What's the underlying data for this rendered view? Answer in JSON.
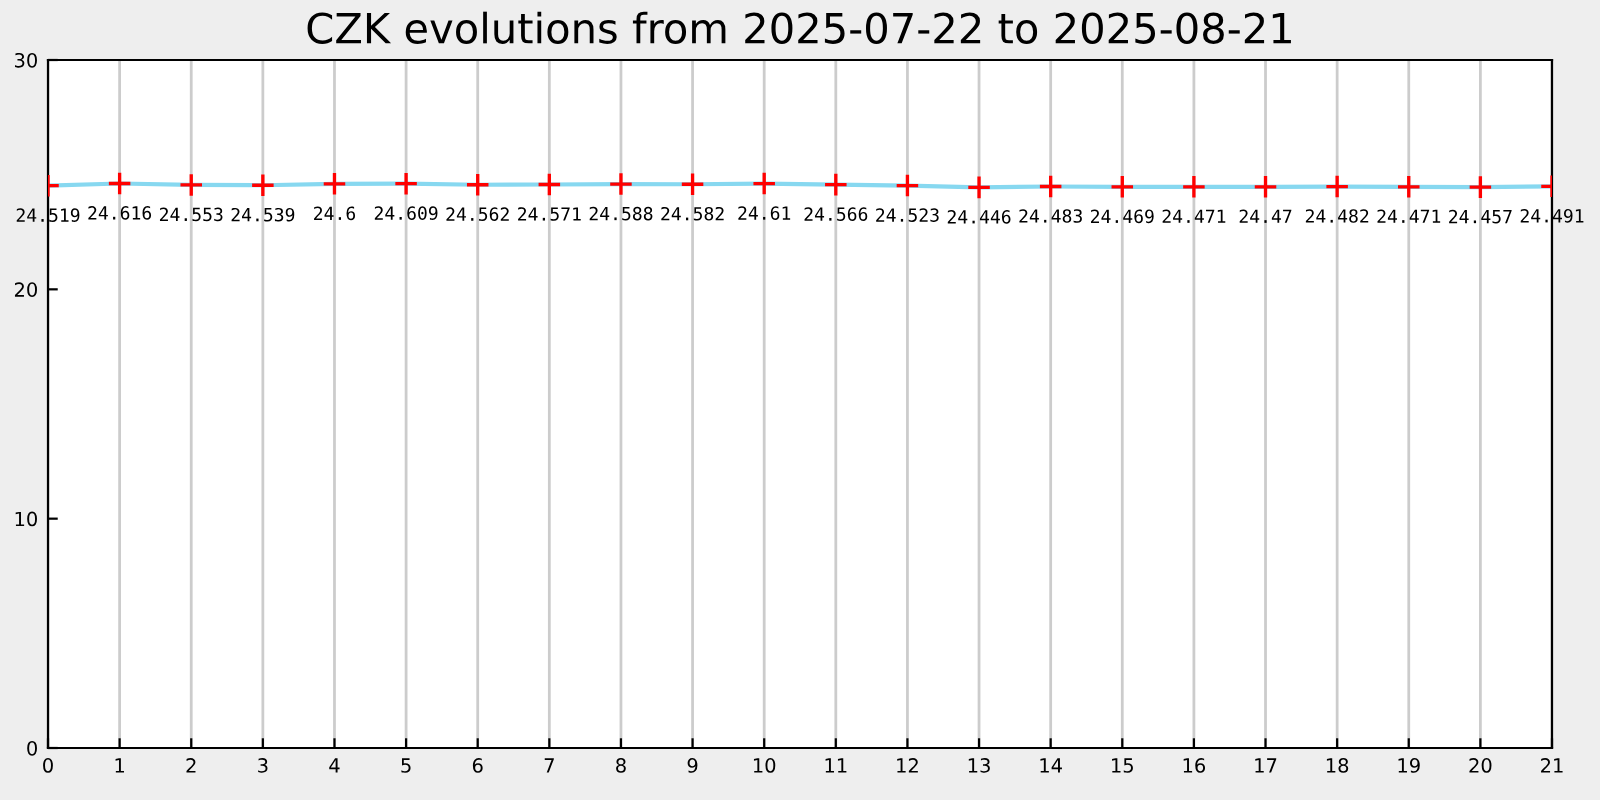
{
  "chart_data": {
    "type": "line",
    "title": "CZK evolutions from 2025-07-22 to 2025-08-21",
    "x": [
      0,
      1,
      2,
      3,
      4,
      5,
      6,
      7,
      8,
      9,
      10,
      11,
      12,
      13,
      14,
      15,
      16,
      17,
      18,
      19,
      20,
      21
    ],
    "series": [
      {
        "color": "#87d8f0",
        "colors": [
          "#ff0000",
          "#ff0000",
          "#ff0000",
          "#ff0000",
          "#ff0000",
          "#ff0000",
          "#ff0000",
          "#ff0000",
          "#ff0000",
          "#ff0000",
          "#ff0000",
          "#ff0000",
          "#ff0000",
          "#ff0000",
          "#ff0000",
          "#ff0000",
          "#ff0000",
          "#ff0000",
          "#ff0000",
          "#ff0000",
          "#ff0000",
          "#ff0000"
        ],
        "values": [
          24.519,
          24.616,
          24.553,
          24.539,
          24.6,
          24.609,
          24.562,
          24.571,
          24.588,
          24.582,
          24.61,
          24.566,
          24.523,
          24.446,
          24.483,
          24.469,
          24.471,
          24.47,
          24.482,
          24.471,
          24.457,
          24.491
        ]
      }
    ],
    "marker": "cross",
    "data_labels": true,
    "xlim": [
      0,
      21
    ],
    "xticks": [
      0,
      1,
      2,
      3,
      4,
      5,
      6,
      7,
      8,
      9,
      10,
      11,
      12,
      13,
      14,
      15,
      16,
      17,
      18,
      19,
      20,
      21
    ],
    "ylim": [
      0,
      30
    ],
    "yticks": [
      0,
      10,
      20,
      30
    ],
    "grid": "x"
  }
}
